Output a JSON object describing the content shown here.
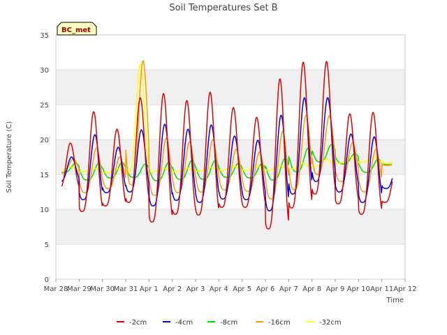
{
  "chart_data": {
    "type": "line",
    "title": "Soil Temperatures Set B",
    "xlabel": "Time",
    "ylabel": "Soil Temperature (C)",
    "ylim": [
      0,
      35
    ],
    "yticks": [
      0,
      5,
      10,
      15,
      20,
      25,
      30,
      35
    ],
    "xlim_days": [
      0,
      15
    ],
    "xtick_labels": [
      "Mar 28",
      "Mar 29",
      "Mar 30",
      "Mar 31",
      "Apr 1",
      "Apr 2",
      "Apr 3",
      "Apr 4",
      "Apr 5",
      "Apr 6",
      "Apr 7",
      "Apr 8",
      "Apr 9",
      "Apr 10",
      "Apr 11",
      "Apr 12"
    ],
    "grid": true,
    "legend_position": "bottom",
    "station_badge": "BC_met",
    "series": [
      {
        "name": "-2cm",
        "color": "#e00000",
        "daily_min": [
          13.0,
          9.7,
          10.5,
          11.0,
          8.2,
          9.3,
          9.2,
          10.3,
          10.3,
          7.2,
          10.2,
          12.2,
          10.8,
          9.3,
          11.0
        ],
        "daily_max": [
          19.5,
          24.0,
          21.5,
          26.0,
          26.6,
          25.6,
          26.8,
          24.6,
          23.2,
          28.7,
          31.1,
          31.2,
          23.7,
          23.9,
          16.0
        ]
      },
      {
        "name": "-4cm",
        "color": "#0000dd",
        "daily_min": [
          14.0,
          11.4,
          12.4,
          12.5,
          10.5,
          11.3,
          11.0,
          11.5,
          11.4,
          9.8,
          12.2,
          14.0,
          12.5,
          11.0,
          13.0
        ],
        "daily_max": [
          17.5,
          20.7,
          18.9,
          21.4,
          22.2,
          21.5,
          22.1,
          20.5,
          19.9,
          23.5,
          26.0,
          26.0,
          20.8,
          20.4,
          16.5
        ]
      },
      {
        "name": "-8cm",
        "color": "#00dd00",
        "daily_min": [
          15.3,
          14.2,
          14.5,
          14.6,
          14.1,
          14.3,
          14.3,
          14.6,
          14.5,
          14.2,
          15.4,
          16.8,
          16.5,
          15.3,
          16.4
        ],
        "daily_max": [
          16.6,
          16.6,
          16.7,
          16.5,
          16.7,
          17.0,
          17.0,
          16.6,
          16.5,
          17.3,
          18.8,
          19.3,
          18.0,
          17.2,
          16.6
        ]
      },
      {
        "name": "-16cm",
        "color": "#ff9900",
        "daily_min": [
          15.2,
          12.4,
          13.0,
          13.5,
          12.0,
          12.4,
          12.5,
          12.8,
          12.6,
          11.5,
          12.8,
          15.0,
          14.0,
          12.5,
          16.3
        ],
        "daily_max": [
          17.2,
          18.8,
          17.5,
          31.3,
          20.2,
          19.7,
          20.0,
          18.6,
          18.2,
          21.2,
          23.5,
          23.4,
          19.6,
          18.6,
          17.0
        ]
      },
      {
        "name": "-32cm",
        "color": "#ffff00",
        "daily_min": [
          15.6,
          15.4,
          15.3,
          15.3,
          15.4,
          15.4,
          15.5,
          15.6,
          15.6,
          15.6,
          15.8,
          16.2,
          16.6,
          16.8,
          16.6
        ],
        "daily_max": [
          16.1,
          15.9,
          15.8,
          30.8,
          15.9,
          15.9,
          16.0,
          16.2,
          16.2,
          16.3,
          16.6,
          17.2,
          17.5,
          17.5,
          16.8
        ]
      }
    ]
  }
}
